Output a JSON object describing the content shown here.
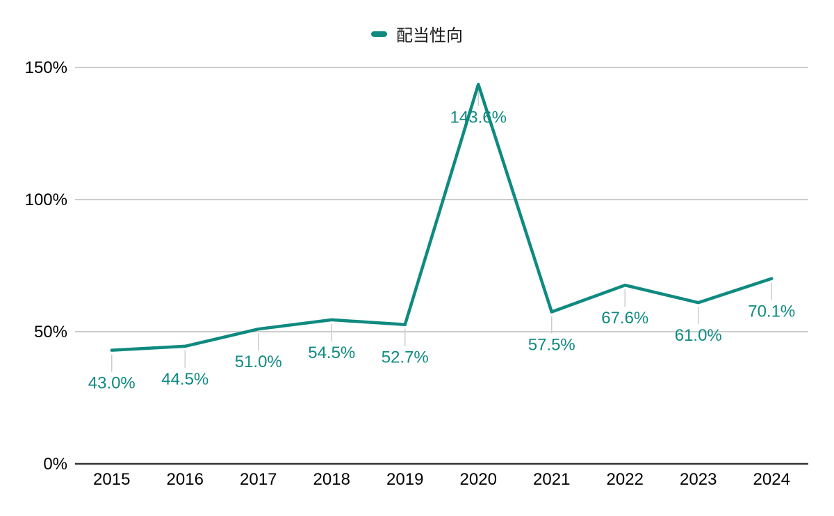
{
  "chart_data": {
    "type": "line",
    "title": "",
    "xlabel": "",
    "ylabel": "",
    "categories": [
      "2015",
      "2016",
      "2017",
      "2018",
      "2019",
      "2020",
      "2021",
      "2022",
      "2023",
      "2024"
    ],
    "series": [
      {
        "name": "配当性向",
        "values": [
          43.0,
          44.5,
          51.0,
          54.5,
          52.7,
          143.6,
          57.5,
          67.6,
          61.0,
          70.1
        ],
        "point_labels": [
          "43.0%",
          "44.5%",
          "51.0%",
          "54.5%",
          "52.7%",
          "143.6%",
          "57.5%",
          "67.6%",
          "61.0%",
          "70.1%"
        ]
      }
    ],
    "ylim": [
      0,
      150
    ],
    "yticks": [
      {
        "value": 0,
        "label": "0%"
      },
      {
        "value": 50,
        "label": "50%"
      },
      {
        "value": 100,
        "label": "100%"
      },
      {
        "value": 150,
        "label": "150%"
      }
    ],
    "grid": true,
    "legend_position": "top-center",
    "colors": {
      "series": "#0f8a80",
      "grid": "#cccccc",
      "axis": "#333333",
      "tick_text": "#000000",
      "data_label": "#0f8a80",
      "legend_text": "#1a1a1a",
      "background": "#ffffff"
    }
  }
}
